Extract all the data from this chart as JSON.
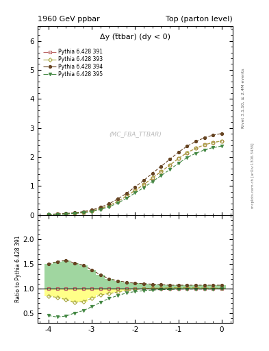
{
  "title_left": "1960 GeV ppbar",
  "title_right": "Top (parton level)",
  "ylabel_ratio": "Ratio to Pythia 6.428 391",
  "annotation_main": "Δy (t̅tbar) (dy < 0)",
  "annotation_watermark": "(MC_FBA_TTBAR)",
  "rivet_label": "Rivet 3.1.10, ≥ 2.4M events",
  "mcplots_label": "mcplots.cern.ch [arXiv:1306.3436]",
  "xlim": [
    -4.25,
    0.25
  ],
  "ylim_main": [
    0,
    6.5
  ],
  "ylim_ratio": [
    0.3,
    2.5
  ],
  "yticks_main": [
    0,
    1,
    2,
    3,
    4,
    5,
    6
  ],
  "yticks_ratio": [
    0.5,
    1.0,
    1.5,
    2.0
  ],
  "xticks": [
    -4,
    -3,
    -2,
    -1,
    0
  ],
  "x_values": [
    -4.0,
    -3.8,
    -3.6,
    -3.4,
    -3.2,
    -3.0,
    -2.8,
    -2.6,
    -2.4,
    -2.2,
    -2.0,
    -1.8,
    -1.6,
    -1.4,
    -1.2,
    -1.0,
    -0.8,
    -0.6,
    -0.4,
    -0.2,
    0.0
  ],
  "bin_width": 0.2,
  "series": [
    {
      "label": "Pythia 6.428 391",
      "color": "#bb6666",
      "marker": "s",
      "marker_size": 3,
      "fillstyle": "none",
      "linestyle": "-.",
      "y_main": [
        0.02,
        0.03,
        0.04,
        0.06,
        0.09,
        0.14,
        0.22,
        0.33,
        0.47,
        0.65,
        0.85,
        1.05,
        1.28,
        1.5,
        1.72,
        1.95,
        2.15,
        2.3,
        2.42,
        2.5,
        2.55
      ],
      "y_ratio": [
        1.0,
        1.0,
        1.0,
        1.0,
        1.0,
        1.0,
        1.0,
        1.0,
        1.0,
        1.0,
        1.0,
        1.0,
        1.0,
        1.0,
        1.0,
        1.0,
        1.0,
        1.0,
        1.0,
        1.0,
        1.0
      ]
    },
    {
      "label": "Pythia 6.428 393",
      "color": "#aaaa44",
      "marker": "D",
      "marker_size": 3,
      "fillstyle": "none",
      "linestyle": "-.",
      "y_main": [
        0.02,
        0.03,
        0.042,
        0.063,
        0.092,
        0.143,
        0.222,
        0.332,
        0.472,
        0.652,
        0.852,
        1.052,
        1.282,
        1.502,
        1.722,
        1.952,
        2.152,
        2.302,
        2.422,
        2.502,
        2.552
      ],
      "y_ratio": [
        0.85,
        0.82,
        0.78,
        0.72,
        0.74,
        0.8,
        0.87,
        0.9,
        0.93,
        0.96,
        0.98,
        1.0,
        1.01,
        1.01,
        1.02,
        1.02,
        1.02,
        1.02,
        1.01,
        1.01,
        1.01
      ]
    },
    {
      "label": "Pythia 6.428 394",
      "color": "#664422",
      "marker": "o",
      "marker_size": 3,
      "fillstyle": "full",
      "linestyle": "-.",
      "y_main": [
        0.025,
        0.038,
        0.055,
        0.082,
        0.118,
        0.175,
        0.268,
        0.392,
        0.555,
        0.75,
        0.972,
        1.195,
        1.445,
        1.68,
        1.92,
        2.165,
        2.375,
        2.535,
        2.665,
        2.755,
        2.81
      ],
      "y_ratio": [
        1.5,
        1.55,
        1.58,
        1.52,
        1.48,
        1.38,
        1.28,
        1.2,
        1.16,
        1.13,
        1.11,
        1.1,
        1.09,
        1.08,
        1.07,
        1.07,
        1.07,
        1.07,
        1.07,
        1.07,
        1.07
      ]
    },
    {
      "label": "Pythia 6.428 395",
      "color": "#448844",
      "marker": "v",
      "marker_size": 3,
      "fillstyle": "full",
      "linestyle": "-.",
      "y_main": [
        0.016,
        0.025,
        0.036,
        0.054,
        0.079,
        0.122,
        0.19,
        0.288,
        0.415,
        0.578,
        0.762,
        0.948,
        1.155,
        1.36,
        1.568,
        1.785,
        1.982,
        2.128,
        2.245,
        2.325,
        2.375
      ],
      "y_ratio": [
        0.45,
        0.42,
        0.44,
        0.5,
        0.55,
        0.63,
        0.72,
        0.8,
        0.86,
        0.91,
        0.94,
        0.96,
        0.97,
        0.98,
        0.98,
        0.99,
        0.99,
        0.99,
        0.99,
        0.99,
        1.0
      ]
    }
  ],
  "band_yellow": {
    "color": "#ffff88",
    "alpha": 1.0
  },
  "band_green": {
    "color": "#88cc88",
    "alpha": 0.8
  },
  "background_color": "#ffffff"
}
